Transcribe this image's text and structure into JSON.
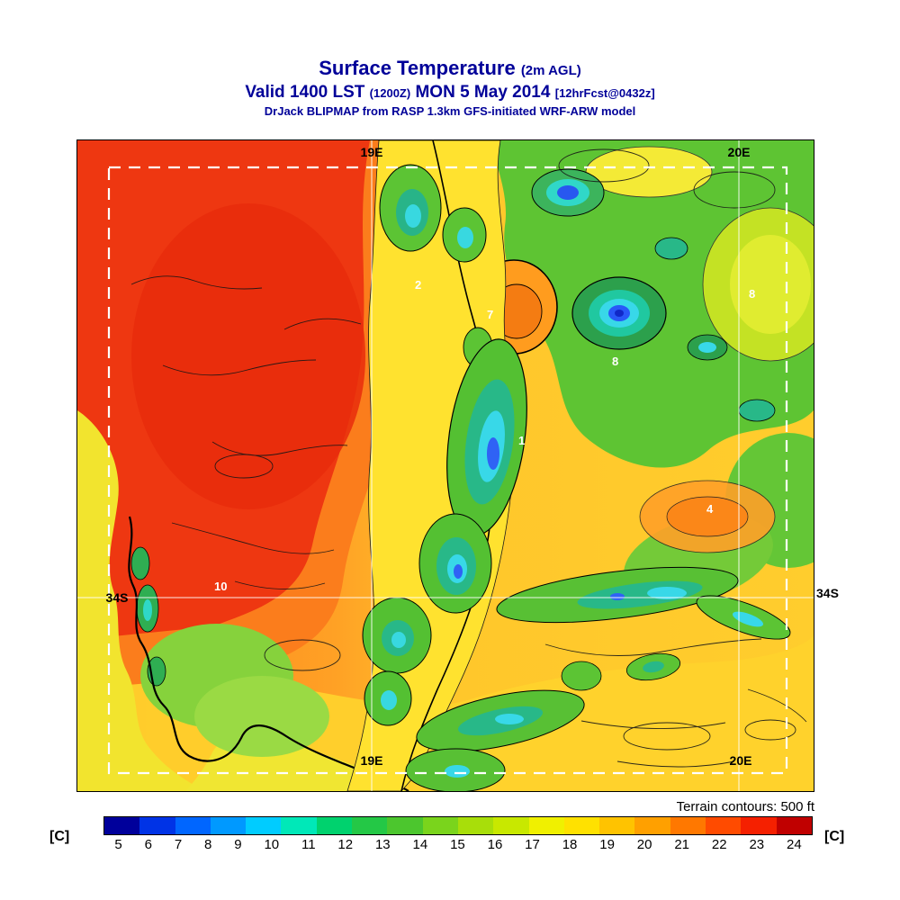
{
  "header": {
    "title": "Surface Temperature",
    "title_note": "(2m AGL)",
    "valid_prefix": "Valid 1400 LST",
    "valid_zulu": "(1200Z)",
    "valid_date": "MON 5 May 2014",
    "valid_fcst": "[12hrFcst@0432z]",
    "model_line": "DrJack BLIPMAP from RASP 1.3km GFS-initiated WRF-ARW model"
  },
  "map": {
    "grid_labels": {
      "top_left": "19E",
      "top_right": "20E",
      "bottom_left": "19E",
      "bottom_right": "20E",
      "lat_left": "34S",
      "lat_right": "34S"
    },
    "region_numbers": [
      {
        "text": "2"
      },
      {
        "text": "7"
      },
      {
        "text": "1"
      },
      {
        "text": "8"
      },
      {
        "text": "8"
      },
      {
        "text": "4"
      },
      {
        "text": "10"
      }
    ],
    "terrain_note": "Terrain contours: 500 ft"
  },
  "colorbar": {
    "unit_left": "[C]",
    "unit_right": "[C]"
  },
  "chart_data": {
    "type": "heatmap",
    "title": "Surface Temperature (2m AGL)",
    "subtitle": "Valid 1400 LST (1200Z) MON 5 May 2014 [12hrFcst@0432z]",
    "model": "DrJack BLIPMAP from RASP 1.3km GFS-initiated WRF-ARW model",
    "units": "C",
    "colorbar_ticks": [
      5,
      6,
      7,
      8,
      9,
      10,
      11,
      12,
      13,
      14,
      15,
      16,
      17,
      18,
      19,
      20,
      21,
      22,
      23,
      24
    ],
    "colorbar_colors": [
      "#00009b",
      "#0033e6",
      "#0066ff",
      "#0099ff",
      "#00ccff",
      "#00e8b8",
      "#00d26e",
      "#24c846",
      "#4cc62e",
      "#7ad41c",
      "#a8de0a",
      "#c8e800",
      "#f0f000",
      "#ffe100",
      "#ffc300",
      "#ffa000",
      "#ff7800",
      "#ff4b00",
      "#f52000",
      "#c00000"
    ],
    "geo_labels": {
      "longitude": [
        "19E",
        "20E"
      ],
      "latitude": [
        "34S"
      ]
    },
    "terrain_contour_interval_ft": 500,
    "legend_position": "bottom",
    "notes": "Filled temperature field over Western Cape domain; black terrain contours every 500 ft; white dashed inner model domain boundary; white lat/lon graticule at 19E, 20E, 34S."
  }
}
